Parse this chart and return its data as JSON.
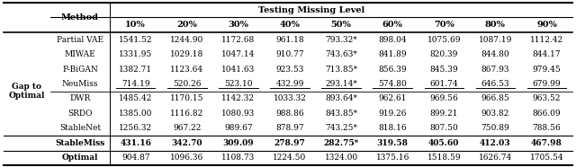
{
  "title": "Testing Missing Level",
  "col_header": [
    "10%",
    "20%",
    "30%",
    "40%",
    "50%",
    "60%",
    "70%",
    "80%",
    "90%"
  ],
  "group_label": "Gap to\nOptimal",
  "rows": [
    {
      "method": "Partial VAE",
      "values": [
        "1541.52",
        "1244.90",
        "1172.68",
        "961.18",
        "793.32*",
        "898.04",
        "1075.69",
        "1087.19",
        "1112.42"
      ],
      "bold": false,
      "underline": false
    },
    {
      "method": "MIWAE",
      "values": [
        "1331.95",
        "1029.18",
        "1047.14",
        "910.77",
        "743.63*",
        "841.89",
        "820.39",
        "844.80",
        "844.17"
      ],
      "bold": false,
      "underline": false
    },
    {
      "method": "P-BiGAN",
      "values": [
        "1382.71",
        "1123.64",
        "1041.63",
        "923.53",
        "713.85*",
        "856.39",
        "845.39",
        "867.93",
        "979.45"
      ],
      "bold": false,
      "underline": false
    },
    {
      "method": "NeuMiss",
      "values": [
        "714.19",
        "520.26",
        "523.10",
        "432.99",
        "293.14*",
        "574.80",
        "601.74",
        "646.53",
        "679.99"
      ],
      "bold": false,
      "underline": true
    },
    {
      "method": "DWR",
      "values": [
        "1485.42",
        "1170.15",
        "1142.32",
        "1033.32",
        "893.64*",
        "962.61",
        "969.56",
        "966.85",
        "963.52"
      ],
      "bold": false,
      "underline": false
    },
    {
      "method": "SRDO",
      "values": [
        "1385.00",
        "1116.82",
        "1080.93",
        "988.86",
        "843.85*",
        "919.26",
        "899.21",
        "903.82",
        "866.09"
      ],
      "bold": false,
      "underline": false
    },
    {
      "method": "StableNet",
      "values": [
        "1256.32",
        "967.22",
        "989.67",
        "878.97",
        "743.25*",
        "818.16",
        "807.50",
        "750.89",
        "788.56"
      ],
      "bold": false,
      "underline": false
    },
    {
      "method": "StableMiss",
      "values": [
        "431.16",
        "342.70",
        "309.09",
        "278.97",
        "282.75*",
        "319.58",
        "405.60",
        "412.03",
        "467.98"
      ],
      "bold": true,
      "underline": false
    }
  ],
  "optimal_row": {
    "method": "Optimal",
    "values": [
      "904.87",
      "1096.36",
      "1108.73",
      "1224.50",
      "1324.00",
      "1375.16",
      "1518.59",
      "1626.74",
      "1705.54"
    ]
  },
  "separator_after_rows": [
    3,
    6
  ],
  "fontsize": 6.5,
  "header_fontsize": 7.0
}
